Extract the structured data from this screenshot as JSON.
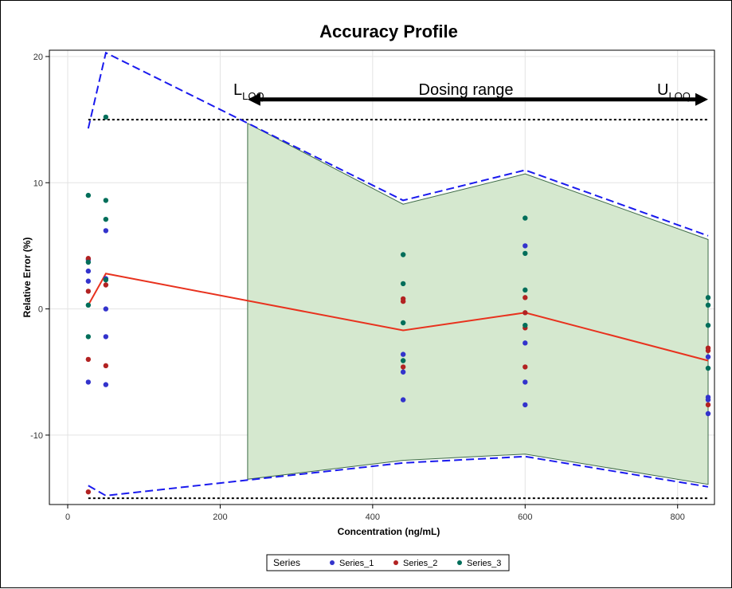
{
  "chart_data": {
    "type": "scatter",
    "title": "Accuracy Profile",
    "xlabel": "Concentration (ng/mL)",
    "ylabel": "Relative Error (%)",
    "xlim": [
      0,
      840
    ],
    "ylim": [
      -15.5,
      20.5
    ],
    "xticks": [
      0,
      200,
      400,
      600,
      800
    ],
    "yticks": [
      -10,
      0,
      10,
      20
    ],
    "grid": true,
    "legend": {
      "title": "Series",
      "position": "bottom-center",
      "entries": [
        {
          "name": "Series_1",
          "color": "#3333cc"
        },
        {
          "name": "Series_2",
          "color": "#b22222"
        },
        {
          "name": "Series_3",
          "color": "#006e5a"
        }
      ]
    },
    "series": [
      {
        "name": "Series_1",
        "color": "#3333cc",
        "points": [
          [
            27,
            3.9
          ],
          [
            27,
            3.0
          ],
          [
            27,
            2.2
          ],
          [
            27,
            -5.8
          ],
          [
            50,
            6.2
          ],
          [
            50,
            2.4
          ],
          [
            50,
            0.0
          ],
          [
            50,
            -2.2
          ],
          [
            50,
            -6.0
          ],
          [
            440,
            -3.6
          ],
          [
            440,
            -5.0
          ],
          [
            440,
            -7.2
          ],
          [
            600,
            5.0
          ],
          [
            600,
            -2.7
          ],
          [
            600,
            -5.8
          ],
          [
            600,
            -7.6
          ],
          [
            840,
            -7.0
          ],
          [
            840,
            -7.2
          ],
          [
            840,
            -8.3
          ],
          [
            840,
            -3.8
          ]
        ]
      },
      {
        "name": "Series_2",
        "color": "#b22222",
        "points": [
          [
            27,
            4.0
          ],
          [
            27,
            1.4
          ],
          [
            27,
            -4.0
          ],
          [
            27,
            -14.5
          ],
          [
            50,
            1.9
          ],
          [
            50,
            -4.5
          ],
          [
            440,
            0.8
          ],
          [
            440,
            0.6
          ],
          [
            440,
            -4.6
          ],
          [
            600,
            0.9
          ],
          [
            600,
            -0.3
          ],
          [
            600,
            -1.5
          ],
          [
            600,
            -4.6
          ],
          [
            840,
            -3.1
          ],
          [
            840,
            -3.3
          ],
          [
            840,
            -7.6
          ]
        ]
      },
      {
        "name": "Series_3",
        "color": "#006e5a",
        "points": [
          [
            27,
            9.0
          ],
          [
            27,
            3.7
          ],
          [
            27,
            0.3
          ],
          [
            27,
            -2.2
          ],
          [
            50,
            15.2
          ],
          [
            50,
            8.6
          ],
          [
            50,
            7.1
          ],
          [
            50,
            2.3
          ],
          [
            440,
            4.3
          ],
          [
            440,
            2.0
          ],
          [
            440,
            -1.1
          ],
          [
            440,
            -4.1
          ],
          [
            600,
            7.2
          ],
          [
            600,
            4.4
          ],
          [
            600,
            1.5
          ],
          [
            600,
            -1.3
          ],
          [
            840,
            0.9
          ],
          [
            840,
            0.3
          ],
          [
            840,
            -1.3
          ],
          [
            840,
            -4.7
          ]
        ]
      }
    ],
    "mean_bias_line": {
      "color": "#e8321e",
      "points": [
        [
          27,
          0.3
        ],
        [
          50,
          2.8
        ],
        [
          440,
          -1.7
        ],
        [
          600,
          -0.3
        ],
        [
          840,
          -4.1
        ]
      ]
    },
    "tolerance_upper": {
      "color": "#1a1aee",
      "points": [
        [
          27,
          14.3
        ],
        [
          50,
          20.3
        ],
        [
          440,
          8.6
        ],
        [
          600,
          11.0
        ],
        [
          840,
          5.8
        ]
      ]
    },
    "tolerance_lower": {
      "color": "#1a1aee",
      "points": [
        [
          27,
          -14.0
        ],
        [
          50,
          -14.8
        ],
        [
          440,
          -12.2
        ],
        [
          600,
          -11.7
        ],
        [
          840,
          -14.1
        ]
      ]
    },
    "acceptance_limits": {
      "color": "#000000",
      "values": [
        15,
        -15
      ],
      "x_range": [
        27,
        840
      ]
    },
    "dosing_region": {
      "fill": "#d5e8cf",
      "upper": [
        [
          236,
          14.7
        ],
        [
          440,
          8.3
        ],
        [
          600,
          10.7
        ],
        [
          840,
          5.5
        ]
      ],
      "lower": [
        [
          236,
          -13.5
        ],
        [
          440,
          -12.0
        ],
        [
          600,
          -11.5
        ],
        [
          840,
          -13.9
        ]
      ]
    },
    "annotations": {
      "range_label": "Dosing range",
      "lloq_main": "L",
      "lloq_sub": "LOQ",
      "uloq_main": "U",
      "uloq_sub": "LOQ",
      "arrow": {
        "x_start": 236,
        "x_end": 840,
        "y": 16.6
      }
    }
  }
}
